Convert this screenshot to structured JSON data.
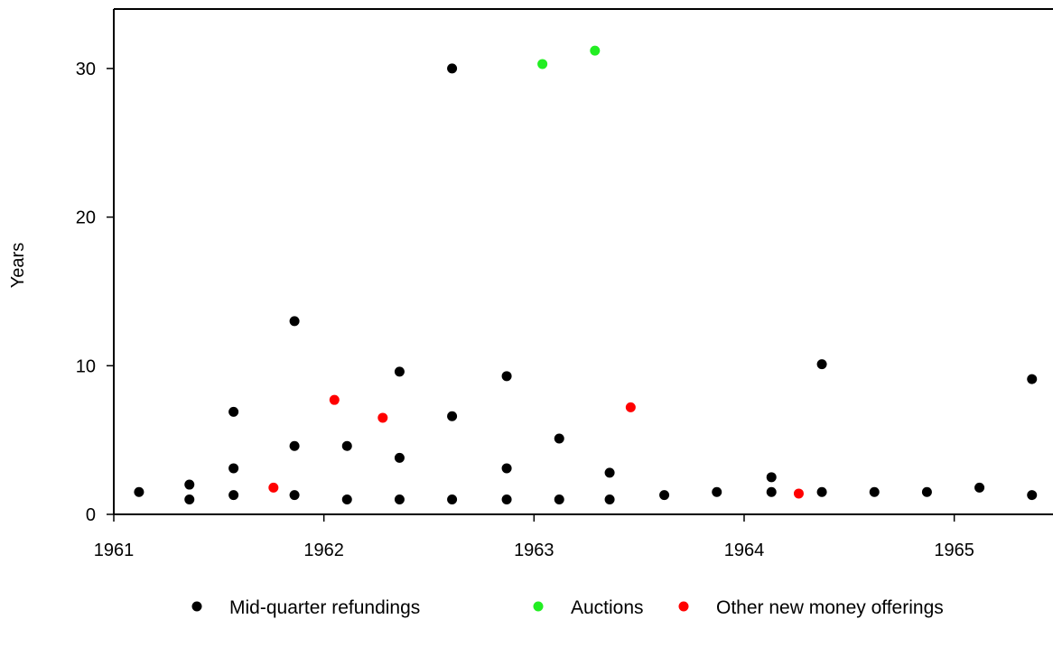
{
  "chart_data": {
    "type": "scatter",
    "title": "",
    "xlabel": "",
    "ylabel": "Years",
    "xlim": [
      1961,
      1965.47
    ],
    "ylim": [
      0,
      34
    ],
    "x_ticks": [
      1961,
      1962,
      1963,
      1964,
      1965
    ],
    "x_tick_labels": [
      "1961",
      "1962",
      "1963",
      "1964",
      "1965"
    ],
    "y_ticks": [
      0,
      10,
      20,
      30
    ],
    "y_tick_labels": [
      "0",
      "10",
      "20",
      "30"
    ],
    "grid": false,
    "legend_position": "bottom",
    "series": [
      {
        "name": "Mid-quarter refundings",
        "color": "#000000",
        "points": [
          {
            "x": 1961.12,
            "y": 1.5
          },
          {
            "x": 1961.36,
            "y": 1.0
          },
          {
            "x": 1961.36,
            "y": 2.0
          },
          {
            "x": 1961.57,
            "y": 1.3
          },
          {
            "x": 1961.57,
            "y": 3.1
          },
          {
            "x": 1961.57,
            "y": 6.9
          },
          {
            "x": 1961.86,
            "y": 1.3
          },
          {
            "x": 1961.86,
            "y": 4.6
          },
          {
            "x": 1961.86,
            "y": 13.0
          },
          {
            "x": 1962.11,
            "y": 1.0
          },
          {
            "x": 1962.11,
            "y": 4.6
          },
          {
            "x": 1962.36,
            "y": 1.0
          },
          {
            "x": 1962.36,
            "y": 3.8
          },
          {
            "x": 1962.36,
            "y": 9.6
          },
          {
            "x": 1962.61,
            "y": 1.0
          },
          {
            "x": 1962.61,
            "y": 6.6
          },
          {
            "x": 1962.61,
            "y": 30.0
          },
          {
            "x": 1962.87,
            "y": 1.0
          },
          {
            "x": 1962.87,
            "y": 3.1
          },
          {
            "x": 1962.87,
            "y": 9.3
          },
          {
            "x": 1963.12,
            "y": 1.0
          },
          {
            "x": 1963.12,
            "y": 5.1
          },
          {
            "x": 1963.36,
            "y": 1.0
          },
          {
            "x": 1963.36,
            "y": 2.8
          },
          {
            "x": 1963.62,
            "y": 1.3
          },
          {
            "x": 1963.87,
            "y": 1.5
          },
          {
            "x": 1964.13,
            "y": 1.5
          },
          {
            "x": 1964.13,
            "y": 2.5
          },
          {
            "x": 1964.37,
            "y": 1.5
          },
          {
            "x": 1964.37,
            "y": 10.1
          },
          {
            "x": 1964.62,
            "y": 1.5
          },
          {
            "x": 1964.87,
            "y": 1.5
          },
          {
            "x": 1965.12,
            "y": 1.8
          },
          {
            "x": 1965.37,
            "y": 1.3
          },
          {
            "x": 1965.37,
            "y": 9.1
          }
        ]
      },
      {
        "name": "Auctions",
        "color": "#22ee22",
        "points": [
          {
            "x": 1963.04,
            "y": 30.3
          },
          {
            "x": 1963.29,
            "y": 31.2
          }
        ]
      },
      {
        "name": "Other new money offerings",
        "color": "#ff0000",
        "points": [
          {
            "x": 1961.76,
            "y": 1.8
          },
          {
            "x": 1962.05,
            "y": 7.7
          },
          {
            "x": 1962.28,
            "y": 6.5
          },
          {
            "x": 1963.46,
            "y": 7.2
          },
          {
            "x": 1964.26,
            "y": 1.4
          }
        ]
      }
    ]
  }
}
